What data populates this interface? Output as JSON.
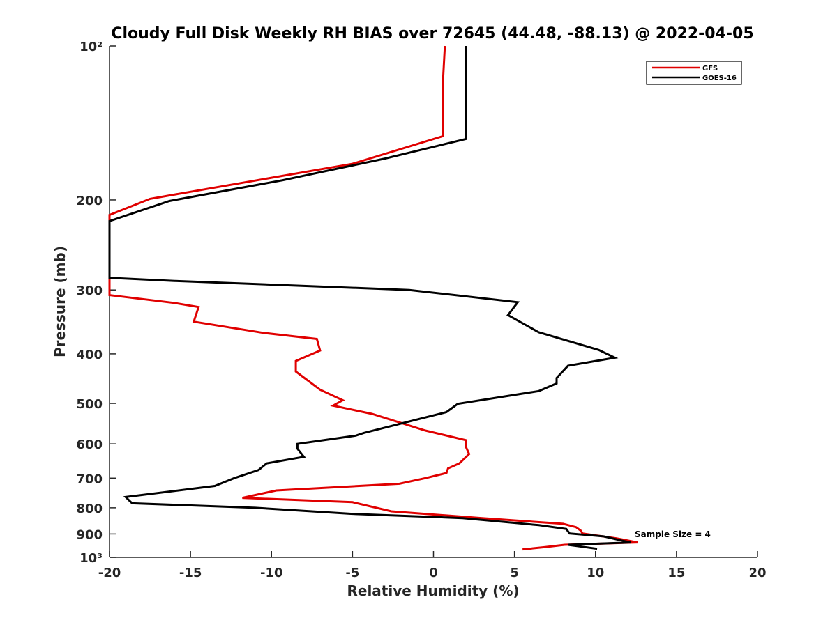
{
  "chart_data": {
    "type": "line",
    "title": "Cloudy Full Disk Weekly RH BIAS over 72645 (44.48, -88.13) @ 2022-04-05",
    "xlabel": "Relative Humidity (%)",
    "ylabel": "Pressure (mb)",
    "xlim": [
      -20,
      20
    ],
    "ylim": [
      100,
      1000
    ],
    "yscale": "log",
    "y_reversed": true,
    "x_ticks": [
      -20,
      -15,
      -10,
      -5,
      0,
      5,
      10,
      15,
      20
    ],
    "x_tick_labels": [
      "-20",
      "-15",
      "-10",
      "-5",
      "0",
      "5",
      "10",
      "15",
      "20"
    ],
    "y_ticks": [
      100,
      200,
      300,
      400,
      500,
      600,
      700,
      800,
      900,
      1000
    ],
    "y_tick_labels": [
      "10²",
      "200",
      "300",
      "400",
      "500",
      "600",
      "700",
      "800",
      "900",
      "10³"
    ],
    "legend_position": "top-right",
    "annotation": "Sample Size = 4",
    "series": [
      {
        "name": "GFS",
        "color": "#e00000",
        "points": [
          [
            0.7,
            100
          ],
          [
            0.6,
            115
          ],
          [
            0.6,
            135
          ],
          [
            0.6,
            150
          ],
          [
            -5.0,
            170
          ],
          [
            -10.0,
            181
          ],
          [
            -17.5,
            199
          ],
          [
            -20.0,
            214
          ],
          [
            -20.0,
            307
          ],
          [
            -16.0,
            318
          ],
          [
            -14.5,
            324
          ],
          [
            -14.8,
            346
          ],
          [
            -10.5,
            364
          ],
          [
            -7.2,
            374
          ],
          [
            -7.0,
            394
          ],
          [
            -8.5,
            413
          ],
          [
            -8.5,
            433
          ],
          [
            -7.0,
            470
          ],
          [
            -5.6,
            493
          ],
          [
            -6.2,
            505
          ],
          [
            -3.8,
            524
          ],
          [
            -0.5,
            565
          ],
          [
            2.0,
            590
          ],
          [
            2.0,
            608
          ],
          [
            2.2,
            628
          ],
          [
            1.6,
            655
          ],
          [
            0.9,
            670
          ],
          [
            0.8,
            684
          ],
          [
            -0.5,
            700
          ],
          [
            -2.1,
            718
          ],
          [
            -9.7,
            740
          ],
          [
            -11.8,
            765
          ],
          [
            -5.0,
            780
          ],
          [
            -2.6,
            813
          ],
          [
            3.0,
            838
          ],
          [
            8.0,
            860
          ],
          [
            8.8,
            873
          ],
          [
            9.1,
            887
          ],
          [
            9.2,
            898
          ],
          [
            11.3,
            918
          ],
          [
            12.6,
            935
          ],
          [
            8.1,
            945
          ],
          [
            6.9,
            955
          ],
          [
            5.5,
            965
          ]
        ]
      },
      {
        "name": "GOES-16",
        "color": "#000000",
        "points": [
          [
            2.0,
            100
          ],
          [
            2.0,
            115
          ],
          [
            2.0,
            135
          ],
          [
            2.0,
            152
          ],
          [
            -3.0,
            166
          ],
          [
            -9.3,
            183
          ],
          [
            -16.3,
            201
          ],
          [
            -20.0,
            220
          ],
          [
            -20.0,
            284
          ],
          [
            -16.0,
            288
          ],
          [
            -1.5,
            300
          ],
          [
            5.2,
            317
          ],
          [
            4.6,
            336
          ],
          [
            6.5,
            363
          ],
          [
            10.2,
            393
          ],
          [
            11.2,
            407
          ],
          [
            8.3,
            422
          ],
          [
            7.6,
            446
          ],
          [
            7.6,
            457
          ],
          [
            6.5,
            473
          ],
          [
            1.5,
            501
          ],
          [
            0.8,
            520
          ],
          [
            -4.3,
            571
          ],
          [
            -4.8,
            578
          ],
          [
            -8.4,
            600
          ],
          [
            -8.4,
            613
          ],
          [
            -8.0,
            636
          ],
          [
            -10.3,
            655
          ],
          [
            -10.8,
            675
          ],
          [
            -12.3,
            700
          ],
          [
            -13.5,
            725
          ],
          [
            -19.0,
            762
          ],
          [
            -18.6,
            784
          ],
          [
            -11.0,
            800
          ],
          [
            -5.1,
            822
          ],
          [
            1.8,
            838
          ],
          [
            6.5,
            865
          ],
          [
            8.2,
            880
          ],
          [
            8.4,
            898
          ],
          [
            10.5,
            910
          ],
          [
            11.6,
            927
          ],
          [
            12.2,
            935
          ],
          [
            8.3,
            945
          ],
          [
            10.1,
            962
          ]
        ]
      }
    ]
  }
}
